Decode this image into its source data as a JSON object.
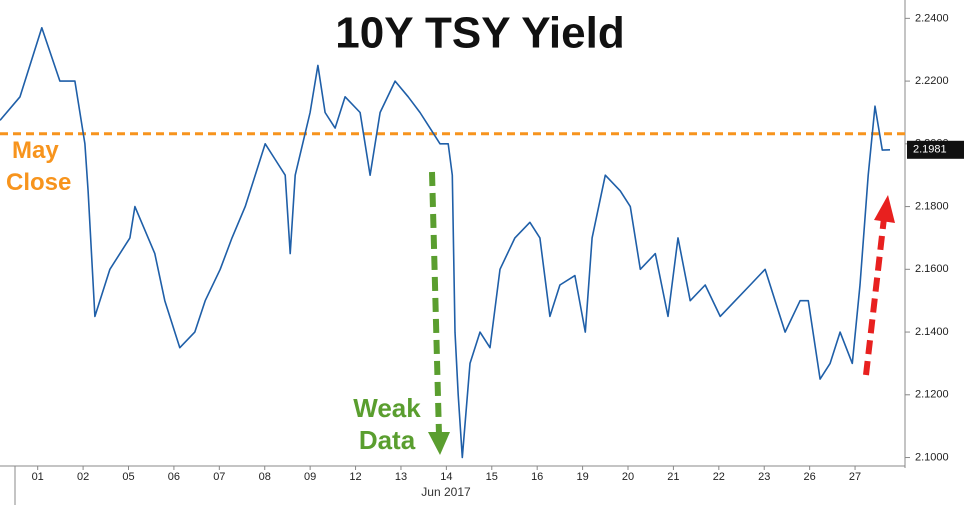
{
  "chart_data": {
    "type": "line",
    "title": "10Y TSY Yield",
    "x_label": "Jun 2017",
    "xlim": [
      -0.33,
      19.6
    ],
    "xticks": [
      {
        "value": 0.5,
        "label": "01"
      },
      {
        "value": 1.5,
        "label": "02"
      },
      {
        "value": 2.5,
        "label": "05"
      },
      {
        "value": 3.5,
        "label": "06"
      },
      {
        "value": 4.5,
        "label": "07"
      },
      {
        "value": 5.5,
        "label": "08"
      },
      {
        "value": 6.5,
        "label": "09"
      },
      {
        "value": 7.5,
        "label": "12"
      },
      {
        "value": 8.5,
        "label": "13"
      },
      {
        "value": 9.5,
        "label": "14"
      },
      {
        "value": 10.5,
        "label": "15"
      },
      {
        "value": 11.5,
        "label": "16"
      },
      {
        "value": 12.5,
        "label": "19"
      },
      {
        "value": 13.5,
        "label": "20"
      },
      {
        "value": 14.5,
        "label": "21"
      },
      {
        "value": 15.5,
        "label": "22"
      },
      {
        "value": 16.5,
        "label": "23"
      },
      {
        "value": 17.5,
        "label": "26"
      },
      {
        "value": 18.5,
        "label": "27"
      }
    ],
    "ylim": [
      2.0973,
      2.2433
    ],
    "yticks": [
      {
        "value": 2.1,
        "label": "2.1000"
      },
      {
        "value": 2.12,
        "label": "2.1200"
      },
      {
        "value": 2.14,
        "label": "2.1400"
      },
      {
        "value": 2.16,
        "label": "2.1600"
      },
      {
        "value": 2.18,
        "label": "2.1800"
      },
      {
        "value": 2.2,
        "label": "2.2000"
      },
      {
        "value": 2.22,
        "label": "2.2200"
      },
      {
        "value": 2.24,
        "label": "2.2400"
      }
    ],
    "x": [
      -0.33,
      0.11,
      0.59,
      0.99,
      1.32,
      1.54,
      1.61,
      1.76,
      2.09,
      2.53,
      2.64,
      3.08,
      3.3,
      3.63,
      3.96,
      4.19,
      4.52,
      4.78,
      5.07,
      5.51,
      5.73,
      5.95,
      6.06,
      6.17,
      6.5,
      6.67,
      6.83,
      7.05,
      7.27,
      7.6,
      7.82,
      8.04,
      8.37,
      8.66,
      8.92,
      9.14,
      9.36,
      9.54,
      9.63,
      9.69,
      9.76,
      9.85,
      10.02,
      10.24,
      10.46,
      10.68,
      11.01,
      11.34,
      11.56,
      11.78,
      12.0,
      12.33,
      12.56,
      12.71,
      13.0,
      13.33,
      13.55,
      13.77,
      14.1,
      14.38,
      14.6,
      14.87,
      15.2,
      15.53,
      15.86,
      16.19,
      16.52,
      16.74,
      16.96,
      17.29,
      17.47,
      17.73,
      17.95,
      18.17,
      18.44,
      18.61,
      18.79,
      18.94,
      19.1,
      19.27
    ],
    "series": [
      {
        "name": "10Y TSY Yield",
        "color": "#1f5fa8",
        "values": [
          2.2075,
          2.215,
          2.237,
          2.22,
          2.22,
          2.2,
          2.185,
          2.145,
          2.16,
          2.17,
          2.18,
          2.165,
          2.15,
          2.135,
          2.14,
          2.15,
          2.16,
          2.17,
          2.18,
          2.2,
          2.195,
          2.19,
          2.165,
          2.19,
          2.21,
          2.225,
          2.21,
          2.205,
          2.215,
          2.21,
          2.19,
          2.21,
          2.22,
          2.215,
          2.21,
          2.205,
          2.2,
          2.2,
          2.19,
          2.14,
          2.12,
          2.1,
          2.13,
          2.14,
          2.135,
          2.16,
          2.17,
          2.175,
          2.17,
          2.145,
          2.155,
          2.158,
          2.14,
          2.17,
          2.19,
          2.185,
          2.18,
          2.16,
          2.165,
          2.145,
          2.17,
          2.15,
          2.155,
          2.145,
          2.15,
          2.155,
          2.16,
          2.15,
          2.14,
          2.15,
          2.15,
          2.125,
          2.13,
          2.14,
          2.13,
          2.155,
          2.19,
          2.212,
          2.198,
          2.1981
        ],
        "value_labels": [
          null,
          null,
          null,
          null,
          null,
          null,
          null,
          null,
          null,
          null,
          null,
          null,
          null,
          null,
          null,
          null,
          null,
          null,
          null,
          null,
          null,
          null,
          null,
          null,
          null,
          null,
          null,
          null,
          null,
          null,
          null,
          null,
          null,
          null,
          null,
          null,
          null,
          null,
          null,
          null,
          null,
          null,
          null,
          null,
          null,
          null,
          null,
          null,
          null,
          null,
          null,
          null,
          null,
          null,
          null,
          null,
          null,
          null,
          null,
          null,
          null,
          null,
          null,
          null,
          null,
          null,
          null,
          null,
          null,
          null,
          null,
          null,
          null,
          null,
          null,
          null,
          null,
          null,
          null,
          "2.1981"
        ]
      }
    ],
    "reference_line": {
      "value": 2.2032,
      "label": "May Close",
      "color": "#f7941d"
    },
    "annotations": [
      {
        "text": "Weak Data",
        "color": "#5a9e2f"
      }
    ]
  }
}
